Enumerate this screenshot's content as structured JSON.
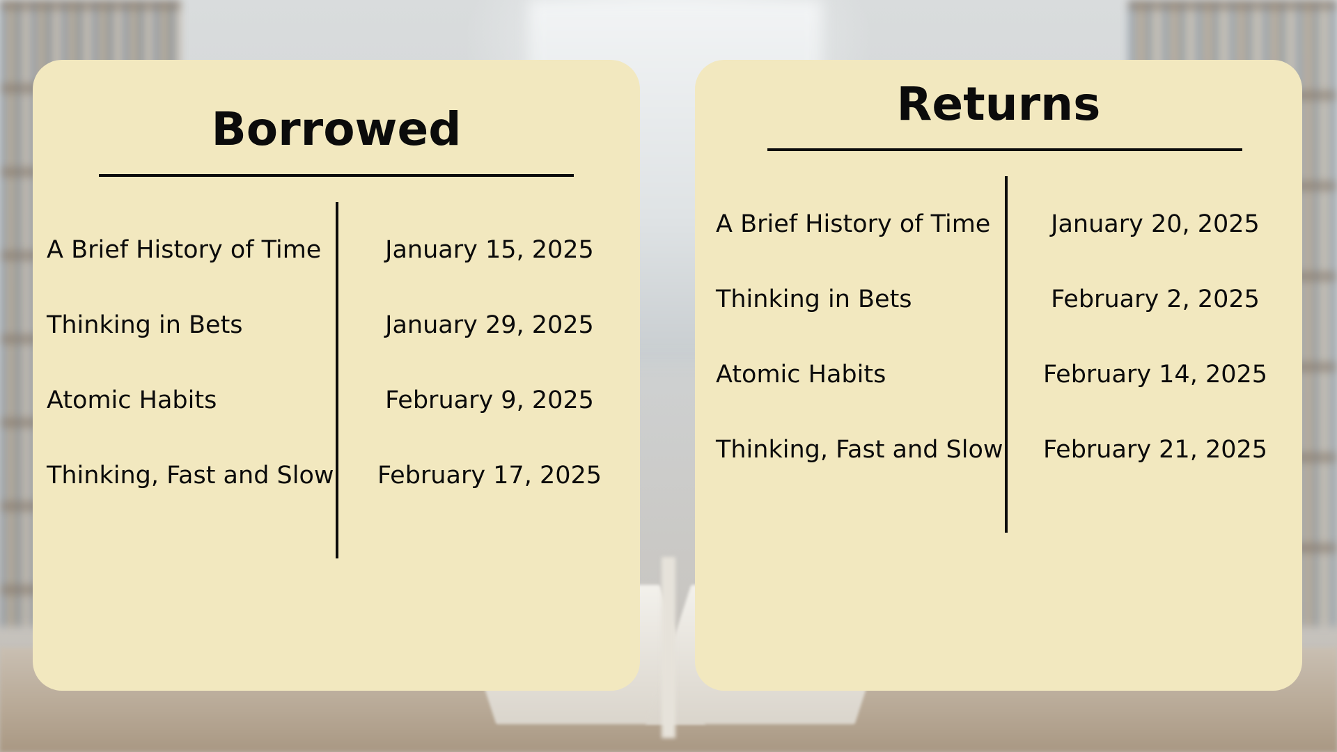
{
  "borrowed": {
    "title": "Borrowed",
    "entries": [
      {
        "book": "A Brief History of Time",
        "date": "January 15, 2025"
      },
      {
        "book": "Thinking in Bets",
        "date": "January 29, 2025"
      },
      {
        "book": "Atomic Habits",
        "date": "February 9, 2025"
      },
      {
        "book": "Thinking, Fast and Slow",
        "date": "February 17, 2025"
      }
    ]
  },
  "returns": {
    "title": "Returns",
    "entries": [
      {
        "book": "A Brief History of Time",
        "date": "January 20, 2025"
      },
      {
        "book": "Thinking in Bets",
        "date": "February 2, 2025"
      },
      {
        "book": "Atomic Habits",
        "date": "February 14, 2025"
      },
      {
        "book": "Thinking, Fast and Slow",
        "date": "February 21, 2025"
      }
    ]
  },
  "colors": {
    "card_background": "#f2e8bf",
    "text": "#0b0b0b",
    "rule": "#0b0b0b"
  }
}
